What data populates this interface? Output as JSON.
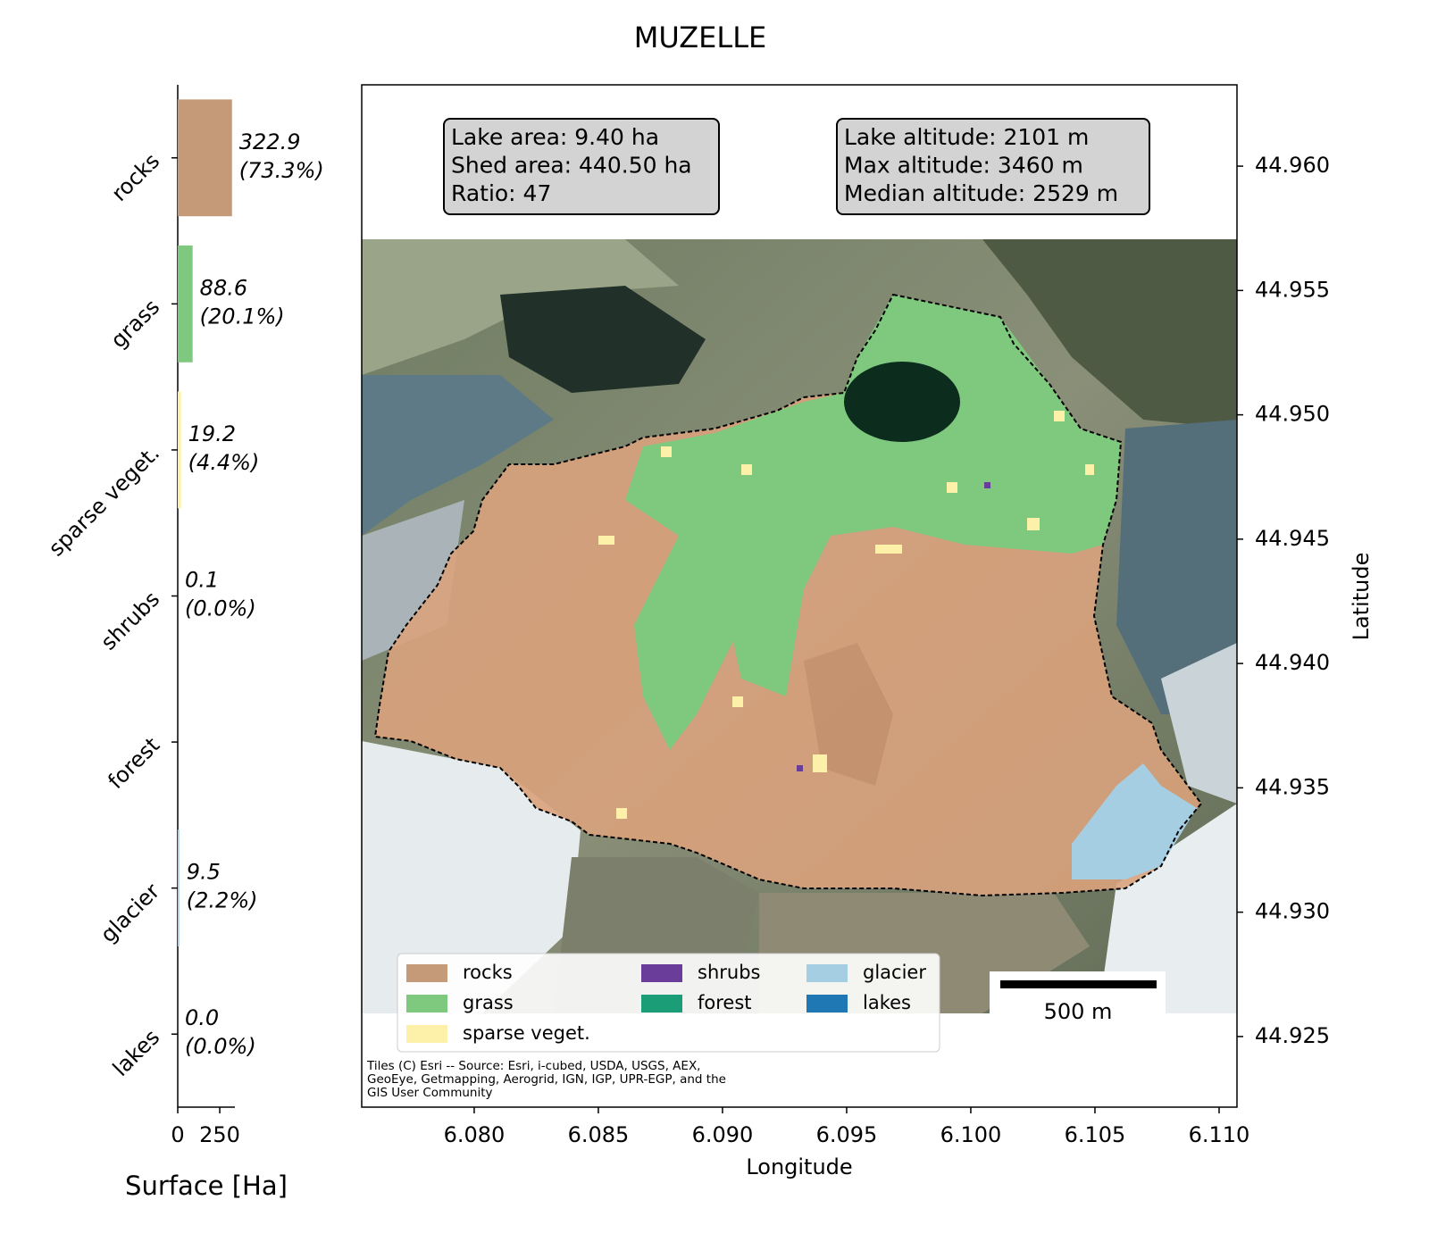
{
  "title": "MUZELLE",
  "chart_data": [
    {
      "type": "bar",
      "orientation": "horizontal",
      "categories": [
        "rocks",
        "grass",
        "sparse veget.",
        "shrubs",
        "forest",
        "glacier",
        "lakes"
      ],
      "values": [
        322.9,
        88.6,
        19.2,
        0.1,
        null,
        9.5,
        0
      ],
      "value_labels": [
        "322.9",
        "88.6",
        "19.2",
        "0.1",
        null,
        "9.5",
        "0.0"
      ],
      "percent_labels": [
        "(73.3%)",
        "(20.1%)",
        "(4.4%)",
        "(0.0%)",
        null,
        "(2.2%)",
        "(0.0%)"
      ],
      "colors": [
        "#c49a78",
        "#7fc97f",
        "#fdf0a8",
        "#6a3d9a",
        "#1b9e77",
        "#a6cee3",
        "#1f78b4"
      ],
      "xlim": [
        0,
        340
      ],
      "xticks": [
        0,
        250
      ],
      "xlabel": "Surface [Ha]"
    },
    {
      "type": "map",
      "xlim": [
        6.07547,
        6.11072
      ],
      "ylim": [
        44.92216,
        44.96327
      ],
      "xticks": [
        {
          "value": 6.08,
          "label": "6.080"
        },
        {
          "value": 6.085,
          "label": "6.085"
        },
        {
          "value": 6.09,
          "label": "6.090"
        },
        {
          "value": 6.095,
          "label": "6.095"
        },
        {
          "value": 6.1,
          "label": "6.100"
        },
        {
          "value": 6.105,
          "label": "6.105"
        },
        {
          "value": 6.11,
          "label": "6.110"
        }
      ],
      "yticks": [
        {
          "value": 44.925,
          "label": "44.925"
        },
        {
          "value": 44.93,
          "label": "44.930"
        },
        44.935,
        {
          "value": 44.94,
          "label": "44.940"
        },
        44.945,
        {
          "value": 44.95,
          "label": "44.950"
        },
        44.955,
        {
          "value": 44.96,
          "label": "44.960"
        }
      ],
      "xlabel": "Longitude",
      "ylabel": "Latitude",
      "info_boxes": [
        [
          "Lake area: 9.40 ha",
          "Shed area: 440.50 ha",
          "Ratio: 47"
        ],
        [
          "Lake altitude: 2101 m",
          "Max altitude: 3460 m",
          "Median altitude: 2529 m"
        ]
      ],
      "scale_bar": "500 m",
      "attribution": [
        "Tiles (C) Esri -- Source: Esri, i-cubed, USDA, USGS, AEX,",
        "GeoEye, Getmapping, Aerogrid, IGN, IGP, UPR-EGP, and the",
        "GIS User Community"
      ]
    }
  ]
}
